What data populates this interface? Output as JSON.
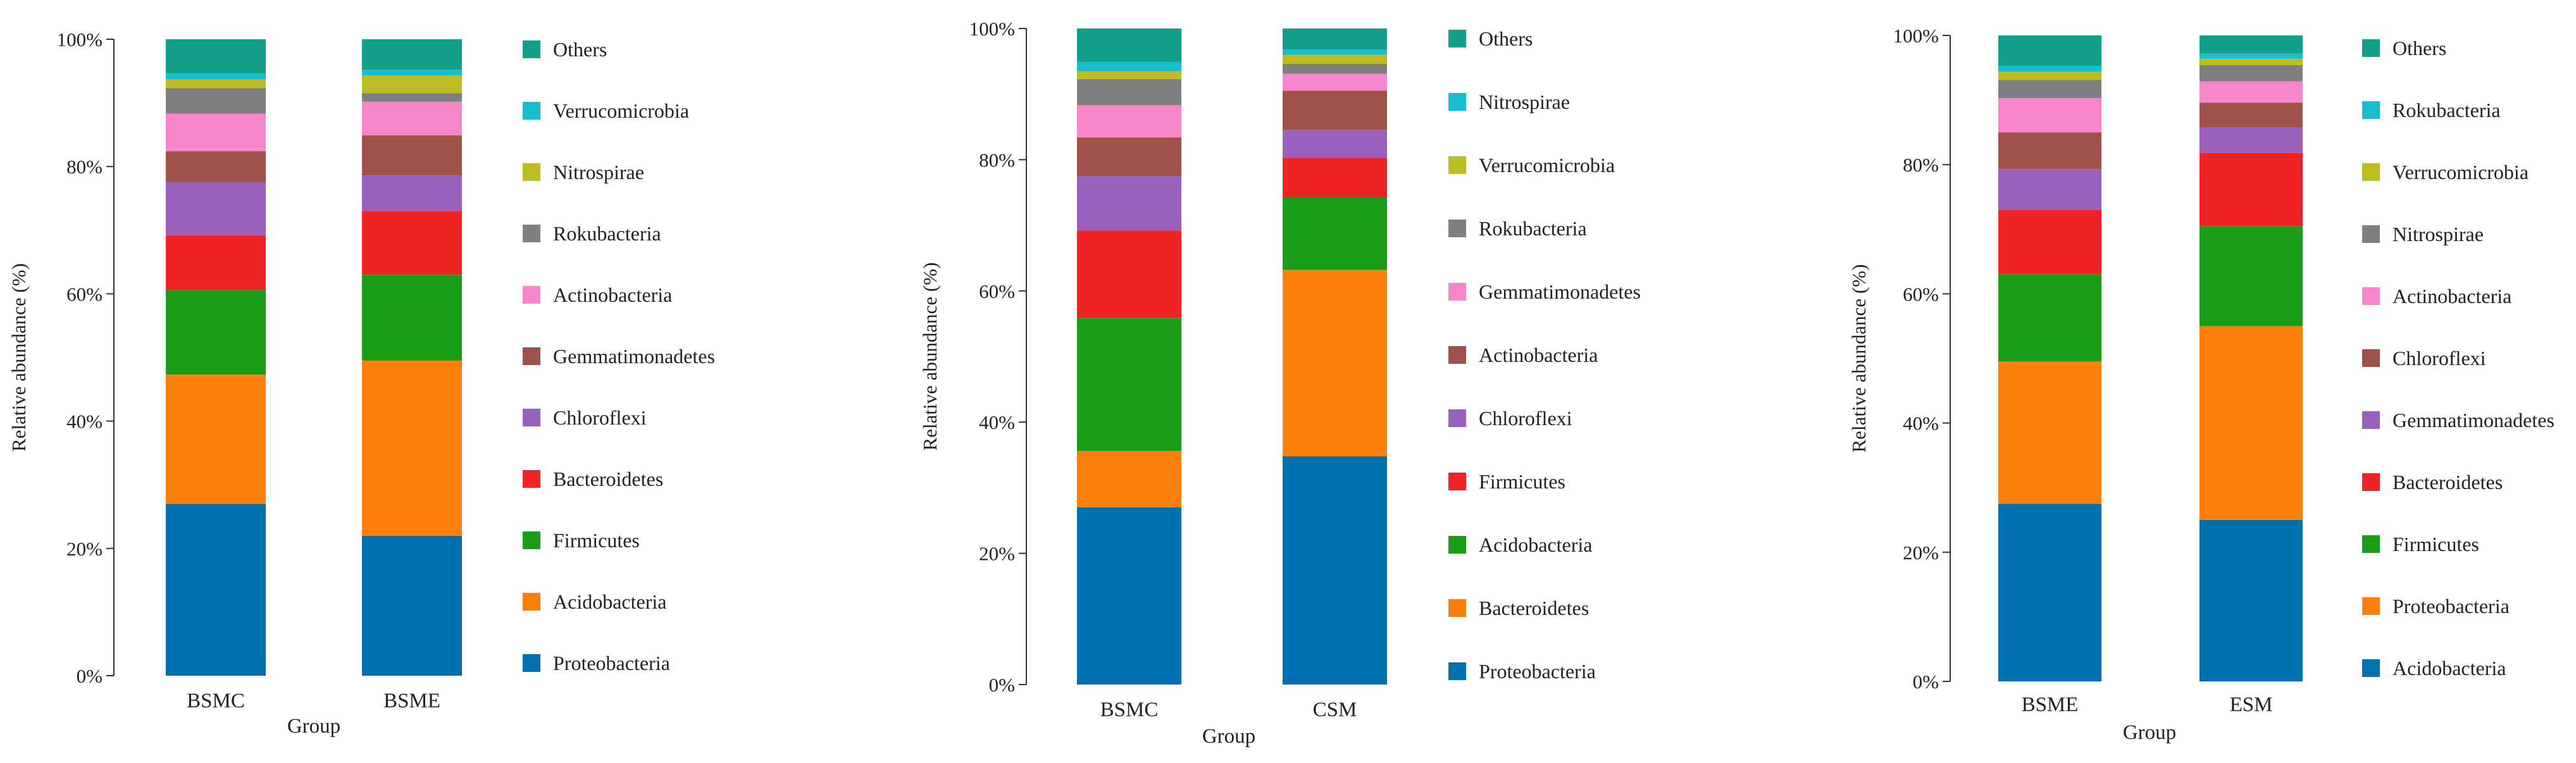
{
  "chart_data": [
    {
      "type": "bar",
      "stacked": true,
      "xlabel": "Group",
      "ylabel": "Relative abundance (%)",
      "ylim": [
        0,
        100
      ],
      "yticks": [
        "0%",
        "20%",
        "40%",
        "60%",
        "80%",
        "100%"
      ],
      "categories": [
        "BSMC",
        "BSME"
      ],
      "series": [
        {
          "name": "Proteobacteria",
          "color": "#0070B0",
          "values": [
            27.0,
            22.0
          ]
        },
        {
          "name": "Acidobacteria",
          "color": "#FF7F0E",
          "values": [
            20.3,
            27.5
          ]
        },
        {
          "name": "Firmicutes",
          "color": "#1A9E1A",
          "values": [
            13.3,
            13.5
          ]
        },
        {
          "name": "Bacteroidetes",
          "color": "#EE2424",
          "values": [
            8.6,
            10.0
          ]
        },
        {
          "name": "Chloroflexi",
          "color": "#9A60BE",
          "values": [
            8.3,
            5.6
          ]
        },
        {
          "name": "Gemmatimonadetes",
          "color": "#A0524A",
          "values": [
            4.9,
            6.3
          ]
        },
        {
          "name": "Actinobacteria",
          "color": "#F786C8",
          "values": [
            5.9,
            5.3
          ]
        },
        {
          "name": "Rokubacteria",
          "color": "#7F7F7F",
          "values": [
            4.0,
            1.3
          ]
        },
        {
          "name": "Nitrospirae",
          "color": "#BCBD22",
          "values": [
            1.4,
            2.8
          ]
        },
        {
          "name": "Verrucomicrobia",
          "color": "#17BECF",
          "values": [
            0.9,
            0.9
          ]
        },
        {
          "name": "Others",
          "color": "#12A088",
          "values": [
            5.4,
            4.8
          ]
        }
      ]
    },
    {
      "type": "bar",
      "stacked": true,
      "xlabel": "Group",
      "ylabel": "Relative abundance (%)",
      "ylim": [
        0,
        100
      ],
      "yticks": [
        "0%",
        "20%",
        "40%",
        "60%",
        "80%",
        "100%"
      ],
      "categories": [
        "BSMC",
        "CSM"
      ],
      "series": [
        {
          "name": "Proteobacteria",
          "color": "#0070B0",
          "values": [
            27.0,
            34.8
          ]
        },
        {
          "name": "Bacteroidetes",
          "color": "#FF7F0E",
          "values": [
            8.6,
            28.4
          ]
        },
        {
          "name": "Acidobacteria",
          "color": "#1A9E1A",
          "values": [
            20.3,
            11.1
          ]
        },
        {
          "name": "Firmicutes",
          "color": "#EE2424",
          "values": [
            13.3,
            6.0
          ]
        },
        {
          "name": "Chloroflexi",
          "color": "#9A60BE",
          "values": [
            8.3,
            4.2
          ]
        },
        {
          "name": "Actinobacteria",
          "color": "#A0524A",
          "values": [
            5.9,
            6.0
          ]
        },
        {
          "name": "Gemmatimonadetes",
          "color": "#F786C8",
          "values": [
            4.9,
            2.6
          ]
        },
        {
          "name": "Rokubacteria",
          "color": "#7F7F7F",
          "values": [
            4.0,
            1.5
          ]
        },
        {
          "name": "Verrucomicrobia",
          "color": "#BCBD22",
          "values": [
            1.2,
            1.4
          ]
        },
        {
          "name": "Nitrospirae",
          "color": "#17BECF",
          "values": [
            1.4,
            0.8
          ]
        },
        {
          "name": "Others",
          "color": "#12A088",
          "values": [
            5.1,
            3.2
          ]
        }
      ]
    },
    {
      "type": "bar",
      "stacked": true,
      "xlabel": "Group",
      "ylabel": "Relative abundance (%)",
      "ylim": [
        0,
        100
      ],
      "yticks": [
        "0%",
        "20%",
        "40%",
        "60%",
        "80%",
        "100%"
      ],
      "categories": [
        "BSME",
        "ESM"
      ],
      "series": [
        {
          "name": "Acidobacteria",
          "color": "#0070B0",
          "values": [
            27.5,
            25.0
          ]
        },
        {
          "name": "Proteobacteria",
          "color": "#FF7F0E",
          "values": [
            22.0,
            30.0
          ]
        },
        {
          "name": "Firmicutes",
          "color": "#1A9E1A",
          "values": [
            13.5,
            15.5
          ]
        },
        {
          "name": "Bacteroidetes",
          "color": "#EE2424",
          "values": [
            10.0,
            11.3
          ]
        },
        {
          "name": "Gemmatimonadetes",
          "color": "#9A60BE",
          "values": [
            6.3,
            4.0
          ]
        },
        {
          "name": "Chloroflexi",
          "color": "#A0524A",
          "values": [
            5.7,
            3.8
          ]
        },
        {
          "name": "Actinobacteria",
          "color": "#F786C8",
          "values": [
            5.3,
            3.3
          ]
        },
        {
          "name": "Nitrospirae",
          "color": "#7F7F7F",
          "values": [
            2.8,
            2.5
          ]
        },
        {
          "name": "Verrucomicrobia",
          "color": "#BCBD22",
          "values": [
            1.3,
            1.0
          ]
        },
        {
          "name": "Rokubacteria",
          "color": "#17BECF",
          "values": [
            0.9,
            0.8
          ]
        },
        {
          "name": "Others",
          "color": "#12A088",
          "values": [
            4.7,
            2.8
          ]
        }
      ]
    }
  ]
}
